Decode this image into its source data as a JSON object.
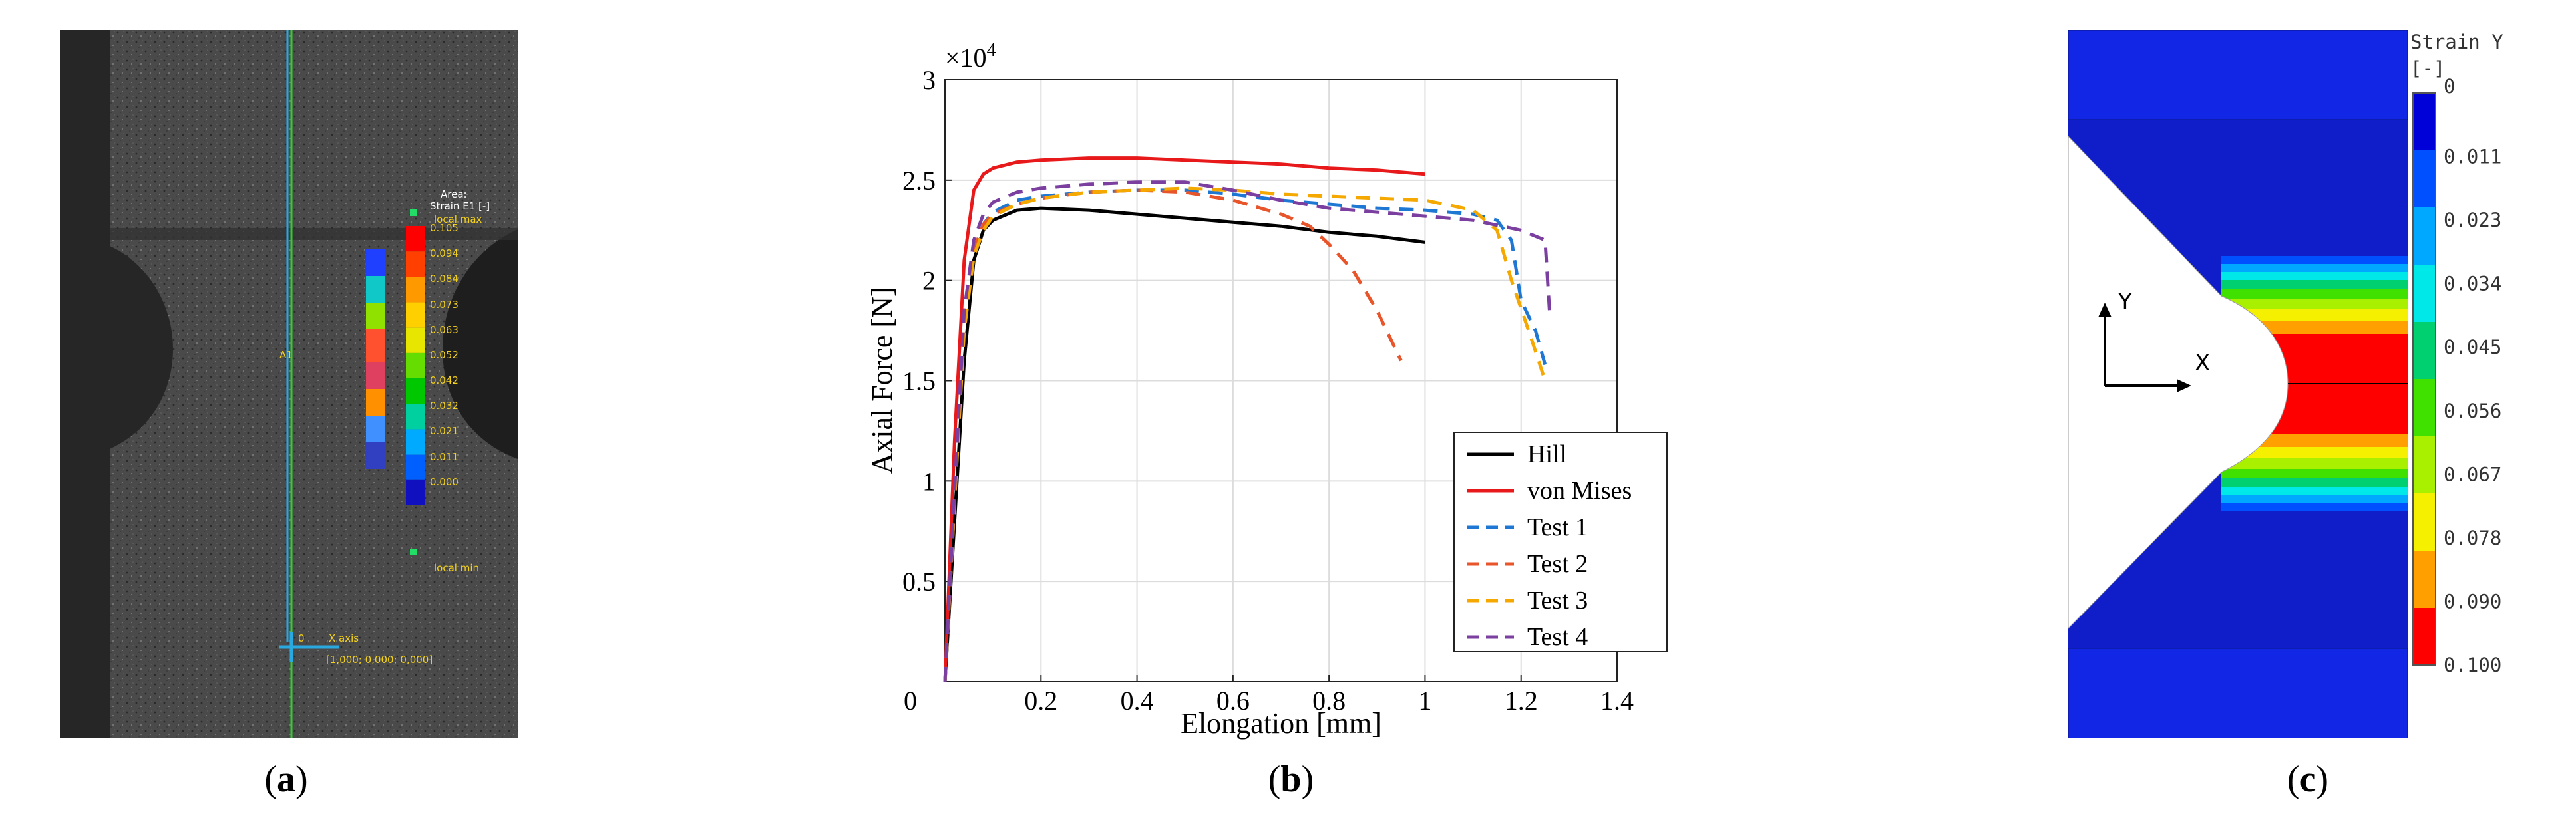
{
  "captions": {
    "a": "a",
    "b": "b",
    "c": "c"
  },
  "panel_a": {
    "title_line1": "Area:",
    "title_line2": "Strain E1 [-]",
    "local_max_label": "local max",
    "local_min_label": "local min",
    "scale_values": [
      "0.105",
      "0.094",
      "0.084",
      "0.073",
      "0.063",
      "0.052",
      "0.042",
      "0.032",
      "0.021",
      "0.011",
      "0.000"
    ],
    "scale_colors": [
      "#ff0000",
      "#ff4000",
      "#ff9900",
      "#ffd000",
      "#e6e600",
      "#66dd00",
      "#00c800",
      "#00d0a0",
      "#00aaff",
      "#0060ff",
      "#1010c0"
    ],
    "section_label": "A1",
    "axis_origin": "0",
    "axis_label": "X axis",
    "axis_vector": "[1,000; 0,000; 0,000]"
  },
  "panel_c": {
    "legend_title": "Strain Y",
    "legend_unit": "[-]",
    "legend_values": [
      "0",
      "0.011",
      "0.023",
      "0.034",
      "0.045",
      "0.056",
      "0.067",
      "0.078",
      "0.090",
      "0.100"
    ],
    "legend_colors": [
      "#0000d8",
      "#0050ff",
      "#00a8ff",
      "#00e8e8",
      "#00d070",
      "#40e000",
      "#a8f000",
      "#f4f000",
      "#ffa000",
      "#ff0000"
    ],
    "axis_y": "Y",
    "axis_x": "X"
  },
  "chart_data": {
    "type": "line",
    "title": "",
    "multiplier_label": "×10",
    "multiplier_exponent": "4",
    "xlabel": "Elongation [mm]",
    "ylabel": "Axial Force [N]",
    "xlim": [
      0,
      1.4
    ],
    "ylim": [
      0,
      3
    ],
    "xticks": [
      0,
      0.2,
      0.4,
      0.6,
      0.8,
      1,
      1.2,
      1.4
    ],
    "yticks": [
      0.5,
      1,
      1.5,
      2,
      2.5,
      3
    ],
    "xtick_labels": [
      "0",
      "0.2",
      "0.4",
      "0.6",
      "0.8",
      "1",
      "1.2",
      "1.4"
    ],
    "ytick_labels": [
      "0.5",
      "1",
      "1.5",
      "2",
      "2.5",
      "3"
    ],
    "grid": true,
    "legend_position": "bottom-right",
    "series": [
      {
        "name": "Hill",
        "color": "#000000",
        "dash": "solid",
        "x": [
          0,
          0.02,
          0.04,
          0.06,
          0.08,
          0.1,
          0.15,
          0.2,
          0.3,
          0.4,
          0.5,
          0.6,
          0.7,
          0.8,
          0.9,
          1.0
        ],
        "y": [
          0,
          0.8,
          1.6,
          2.1,
          2.25,
          2.3,
          2.35,
          2.36,
          2.35,
          2.33,
          2.31,
          2.29,
          2.27,
          2.24,
          2.22,
          2.19
        ]
      },
      {
        "name": "von Mises",
        "color": "#e8191b",
        "dash": "solid",
        "x": [
          0,
          0.02,
          0.04,
          0.06,
          0.08,
          0.1,
          0.15,
          0.2,
          0.3,
          0.4,
          0.5,
          0.6,
          0.7,
          0.8,
          0.9,
          1.0
        ],
        "y": [
          0,
          1.2,
          2.1,
          2.45,
          2.53,
          2.56,
          2.59,
          2.6,
          2.61,
          2.61,
          2.6,
          2.59,
          2.58,
          2.56,
          2.55,
          2.53
        ]
      },
      {
        "name": "Test 1",
        "color": "#1f77d4",
        "dash": "dashed",
        "x": [
          0,
          0.02,
          0.04,
          0.06,
          0.08,
          0.1,
          0.15,
          0.2,
          0.3,
          0.4,
          0.5,
          0.6,
          0.7,
          0.8,
          0.9,
          1.0,
          1.1,
          1.15,
          1.18,
          1.2,
          1.23,
          1.25
        ],
        "y": [
          0,
          0.9,
          1.8,
          2.15,
          2.28,
          2.34,
          2.4,
          2.42,
          2.44,
          2.45,
          2.45,
          2.43,
          2.4,
          2.38,
          2.36,
          2.35,
          2.33,
          2.3,
          2.2,
          1.9,
          1.75,
          1.58
        ]
      },
      {
        "name": "Test 2",
        "color": "#e8552a",
        "dash": "dashed",
        "x": [
          0,
          0.02,
          0.04,
          0.06,
          0.08,
          0.1,
          0.15,
          0.2,
          0.3,
          0.4,
          0.5,
          0.6,
          0.7,
          0.76,
          0.8,
          0.85,
          0.9,
          0.95
        ],
        "y": [
          0,
          0.9,
          1.8,
          2.15,
          2.28,
          2.33,
          2.38,
          2.41,
          2.44,
          2.45,
          2.44,
          2.4,
          2.33,
          2.27,
          2.18,
          2.05,
          1.85,
          1.6
        ]
      },
      {
        "name": "Test 3",
        "color": "#f5a800",
        "dash": "dashed",
        "x": [
          0,
          0.02,
          0.04,
          0.06,
          0.08,
          0.1,
          0.15,
          0.2,
          0.3,
          0.4,
          0.5,
          0.6,
          0.7,
          0.8,
          0.9,
          1.0,
          1.1,
          1.15,
          1.18,
          1.22,
          1.25
        ],
        "y": [
          0,
          0.9,
          1.75,
          2.12,
          2.25,
          2.32,
          2.38,
          2.41,
          2.44,
          2.45,
          2.46,
          2.45,
          2.43,
          2.42,
          2.41,
          2.4,
          2.35,
          2.25,
          2.0,
          1.72,
          1.5
        ]
      },
      {
        "name": "Test 4",
        "color": "#7b3fa0",
        "dash": "dashed",
        "x": [
          0,
          0.02,
          0.04,
          0.06,
          0.08,
          0.1,
          0.15,
          0.2,
          0.3,
          0.4,
          0.5,
          0.6,
          0.7,
          0.8,
          0.9,
          1.0,
          1.1,
          1.2,
          1.25,
          1.26
        ],
        "y": [
          0,
          0.95,
          1.85,
          2.2,
          2.33,
          2.39,
          2.44,
          2.46,
          2.48,
          2.49,
          2.49,
          2.45,
          2.4,
          2.36,
          2.34,
          2.32,
          2.3,
          2.25,
          2.2,
          1.82
        ]
      }
    ]
  }
}
